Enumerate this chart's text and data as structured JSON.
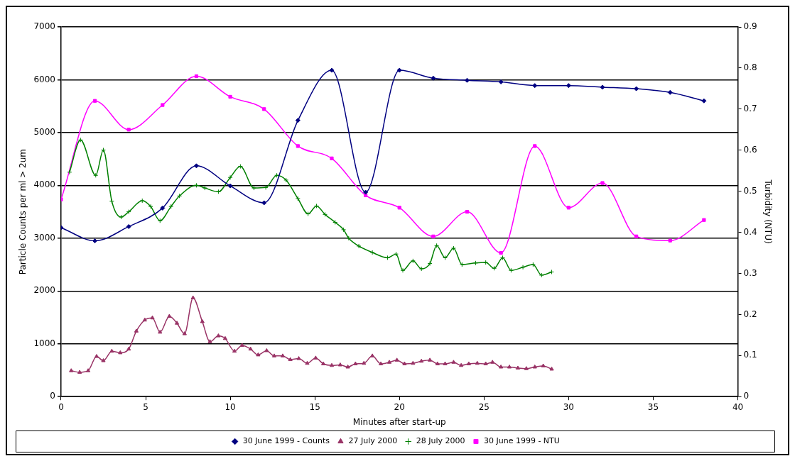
{
  "chart_data": {
    "type": "line",
    "xlabel": "Minutes after start-up",
    "ylabel": "Particle Counts per ml > 2um",
    "y2label": "Turbidity (NTU)",
    "xlim": [
      0,
      40
    ],
    "xticks": [
      0,
      5,
      10,
      15,
      20,
      25,
      30,
      35,
      40
    ],
    "ylim": [
      0,
      7000
    ],
    "yticks": [
      0,
      1000,
      2000,
      3000,
      4000,
      5000,
      6000,
      7000
    ],
    "y2lim": [
      0,
      0.9
    ],
    "y2ticks": [
      0,
      0.1,
      0.2,
      0.3,
      0.4,
      0.5,
      0.6,
      0.7,
      0.8,
      0.9
    ],
    "grid": "y",
    "legend": "bottom",
    "series": [
      {
        "name": "30 June 1999 - Counts",
        "color": "#000080",
        "marker": "diamond",
        "x": [
          0,
          2,
          4,
          6,
          8,
          10,
          12,
          14,
          16,
          18,
          20,
          22,
          24,
          26,
          28,
          30,
          32,
          34,
          36,
          38
        ],
        "values": [
          3200,
          2950,
          3220,
          3570,
          4370,
          3990,
          3670,
          5230,
          6180,
          3870,
          6180,
          6030,
          5990,
          5960,
          5890,
          5890,
          5860,
          5830,
          5760,
          5600
        ]
      },
      {
        "name": "27 July 2000",
        "color": "#993366",
        "marker": "triangle",
        "x": [
          0.6,
          1.1,
          1.6,
          2.1,
          2.5,
          3,
          3.5,
          4,
          4.45,
          4.95,
          5.4,
          5.85,
          6.4,
          6.85,
          7.3,
          7.8,
          8.35,
          8.8,
          9.3,
          9.7,
          10.25,
          10.7,
          11.2,
          11.65,
          12.15,
          12.6,
          13.1,
          13.55,
          14.05,
          14.55,
          15.05,
          15.5,
          16,
          16.5,
          16.95,
          17.4,
          17.9,
          18.4,
          18.9,
          19.4,
          19.85,
          20.3,
          20.8,
          21.3,
          21.8,
          22.25,
          22.7,
          23.2,
          23.65,
          24.1,
          24.6,
          25.1,
          25.5,
          26,
          26.5,
          27,
          27.5,
          28,
          28.5,
          29
        ],
        "values": [
          490,
          460,
          490,
          760,
          680,
          860,
          830,
          900,
          1240,
          1450,
          1490,
          1220,
          1520,
          1390,
          1190,
          1870,
          1420,
          1040,
          1150,
          1100,
          860,
          970,
          900,
          790,
          870,
          770,
          770,
          700,
          720,
          630,
          730,
          620,
          590,
          600,
          560,
          620,
          630,
          770,
          620,
          650,
          690,
          620,
          630,
          670,
          690,
          620,
          620,
          650,
          590,
          620,
          630,
          620,
          650,
          560,
          560,
          540,
          530,
          560,
          580,
          520
        ]
      },
      {
        "name": "28 July 2000",
        "color": "#008000",
        "marker": "cross",
        "x": [
          0.5,
          1.15,
          2.05,
          2.5,
          3,
          3.55,
          4,
          4.8,
          5.3,
          5.85,
          6.5,
          7,
          8,
          8.5,
          9.3,
          10,
          10.6,
          11.4,
          12.1,
          12.75,
          13.3,
          14,
          14.6,
          15.1,
          15.6,
          16.2,
          16.7,
          17,
          17.6,
          18.4,
          19.3,
          19.8,
          20.2,
          20.8,
          21.3,
          21.8,
          22.2,
          22.7,
          23.2,
          23.7,
          24.5,
          25.1,
          25.6,
          26.1,
          26.6,
          27.3,
          27.9,
          28.4,
          29
        ],
        "values": [
          4250,
          4860,
          4190,
          4670,
          3700,
          3400,
          3500,
          3710,
          3600,
          3330,
          3600,
          3800,
          4000,
          3950,
          3880,
          4150,
          4360,
          3950,
          3960,
          4190,
          4100,
          3750,
          3460,
          3610,
          3450,
          3300,
          3160,
          3000,
          2850,
          2730,
          2630,
          2700,
          2390,
          2570,
          2420,
          2520,
          2860,
          2630,
          2810,
          2500,
          2530,
          2540,
          2430,
          2630,
          2390,
          2450,
          2500,
          2300,
          2360
        ]
      },
      {
        "name": "30 June 1999 - NTU",
        "color": "#ff00ff",
        "marker": "square",
        "axis": "y2",
        "x": [
          0,
          2,
          4,
          6,
          8,
          10,
          12,
          14,
          16,
          18,
          20,
          22,
          24,
          26,
          28,
          30,
          32,
          34,
          36,
          38
        ],
        "values": [
          0.48,
          0.72,
          0.65,
          0.71,
          0.78,
          0.73,
          0.7,
          0.61,
          0.58,
          0.49,
          0.46,
          0.39,
          0.45,
          0.35,
          0.61,
          0.46,
          0.52,
          0.39,
          0.38,
          0.43
        ]
      }
    ]
  }
}
